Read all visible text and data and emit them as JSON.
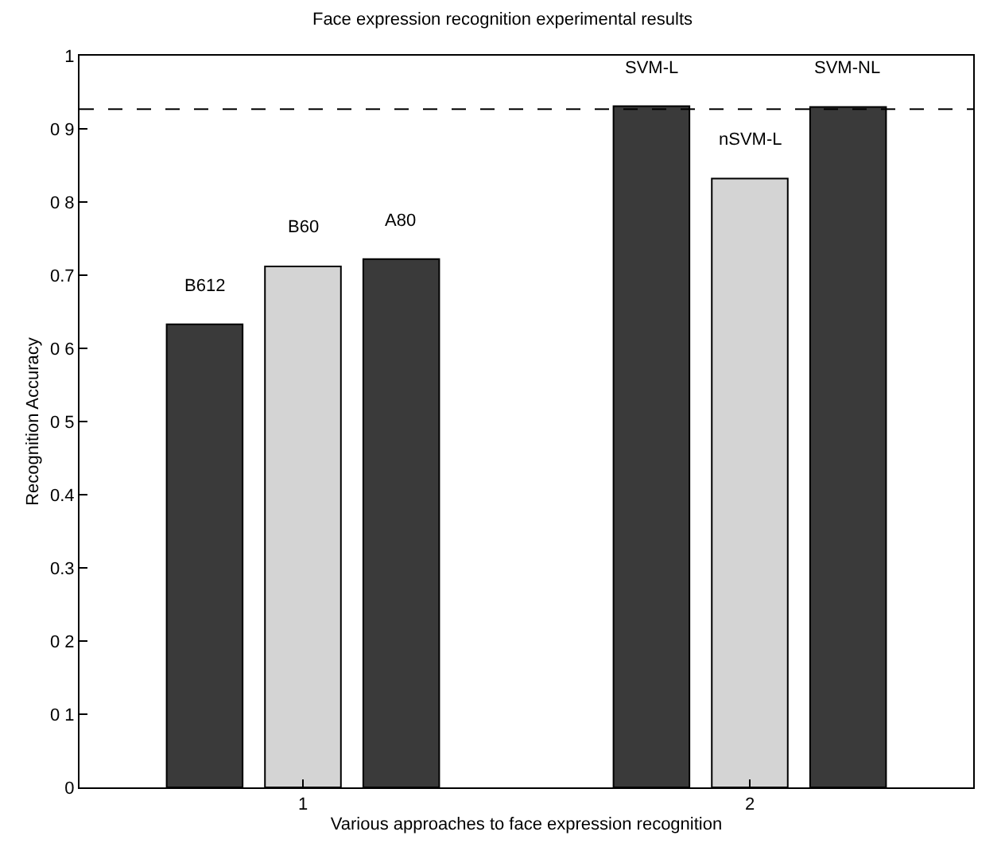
{
  "chart_data": {
    "type": "bar",
    "title": "Face expression recognition experimental results",
    "xlabel": "Various approaches to face expression recognition",
    "ylabel": "Recognition Accuracy",
    "x": [
      0.78,
      1.0,
      1.22,
      1.78,
      2.0,
      2.22
    ],
    "values": [
      0.633,
      0.712,
      0.722,
      0.931,
      0.832,
      0.93
    ],
    "colors": [
      "#3a3a3a",
      "#d4d4d4",
      "#3a3a3a",
      "#3a3a3a",
      "#d4d4d4",
      "#3a3a3a"
    ],
    "xlim": [
      0.5,
      2.5
    ],
    "xticks": [
      1,
      2
    ],
    "ylim": [
      0,
      1
    ],
    "yticks": [
      0,
      {
        "value": 0.1,
        "label": "0 1"
      },
      {
        "value": 0.2,
        "label": "0 2"
      },
      {
        "value": 0.3,
        "label": "0.3"
      },
      {
        "value": 0.4,
        "label": "0.4"
      },
      {
        "value": 0.5,
        "label": "0 5"
      },
      {
        "value": 0.6,
        "label": "0 6"
      },
      {
        "value": 0.7,
        "label": "0.7"
      },
      {
        "value": 0.8,
        "label": "0 8"
      },
      {
        "value": 0.9,
        "label": "0 9"
      },
      1
    ],
    "ref_lines": [
      {
        "axis": "y",
        "value": 0.927,
        "color": "#000000",
        "line_style": "dashed"
      }
    ],
    "annotations": [
      {
        "text": "B612",
        "x": 0.78,
        "y": 0.633
      },
      {
        "text": "B60",
        "x": 1.0,
        "y": 0.712
      },
      {
        "text": "A80",
        "x": 1.22,
        "y": 0.722
      },
      {
        "text": "SVM-L",
        "x": 1.78,
        "y": 0.931
      },
      {
        "text": "nSVM-L",
        "x": 2.0,
        "y": 0.832
      },
      {
        "text": "SVM-NL",
        "x": 2.22,
        "y": 0.93
      }
    ],
    "legend": false
  }
}
